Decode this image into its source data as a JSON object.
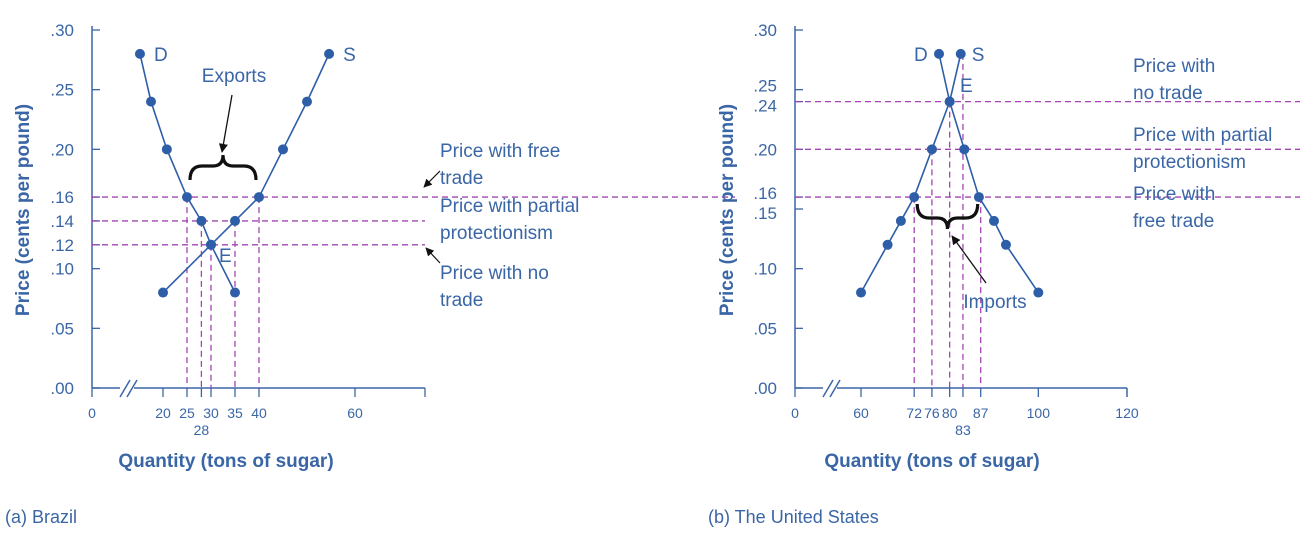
{
  "chart_data": [
    {
      "type": "line",
      "title": "(a) Brazil",
      "xlabel": "Quantity (tons of sugar)",
      "ylabel": "Price (cents per pound)",
      "xticks": [
        0,
        20,
        25,
        28,
        30,
        35,
        40,
        60
      ],
      "xtick_labels": [
        "0",
        "20",
        "25",
        "28",
        "30",
        "35",
        "40",
        "60"
      ],
      "yticks": [
        0.0,
        0.05,
        0.1,
        0.12,
        0.14,
        0.16,
        0.2,
        0.25,
        0.3
      ],
      "ytick_labels": [
        ".00",
        ".05",
        ".10",
        ".12",
        ".14",
        ".16",
        ".20",
        ".25",
        ".30"
      ],
      "ylim": [
        0,
        0.3
      ],
      "axis_break": true,
      "series": [
        {
          "name": "D",
          "x": [
            15.2,
            17.5,
            20.8,
            25,
            28,
            30,
            35
          ],
          "y": [
            0.28,
            0.24,
            0.2,
            0.16,
            0.14,
            0.12,
            0.08
          ]
        },
        {
          "name": "S",
          "x": [
            20,
            30,
            35,
            40,
            45,
            50,
            54.6
          ],
          "y": [
            0.08,
            0.12,
            0.14,
            0.16,
            0.2,
            0.24,
            0.28
          ]
        }
      ],
      "price_lines": [
        {
          "price": 0.16,
          "label1": "Price with free",
          "label2": "trade",
          "arrow": true
        },
        {
          "price": 0.14,
          "label1": "Price with partial",
          "label2": "protectionism",
          "arrow": false
        },
        {
          "price": 0.12,
          "label1": "Price with no",
          "label2": "trade",
          "arrow": true
        }
      ],
      "quantity_lines": [
        25,
        28,
        30,
        35,
        40
      ],
      "equilibrium_label": "E",
      "brace_label": "Exports",
      "brace_range": [
        25,
        40
      ]
    },
    {
      "type": "line",
      "title": "(b) The United States",
      "xlabel": "Quantity (tons of sugar)",
      "ylabel": "Price (cents per pound)",
      "xticks": [
        0,
        60,
        72,
        76,
        80,
        83,
        87,
        100,
        120
      ],
      "xtick_labels": [
        "0",
        "60",
        "72",
        "76",
        "80",
        "83",
        "87",
        "100",
        "120"
      ],
      "yticks": [
        0.0,
        0.05,
        0.1,
        0.15,
        0.16,
        0.2,
        0.24,
        0.25,
        0.3
      ],
      "ytick_labels": [
        ".00",
        ".05",
        ".10",
        ".15",
        ".16",
        ".20",
        ".24",
        ".25",
        ".30"
      ],
      "ylim": [
        0,
        0.3
      ],
      "axis_break": true,
      "series": [
        {
          "name": "D",
          "x": [
            77.6,
            80,
            83.3,
            86.6,
            90,
            92.7,
            100
          ],
          "y": [
            0.28,
            0.24,
            0.2,
            0.16,
            0.14,
            0.12,
            0.08
          ]
        },
        {
          "name": "S",
          "x": [
            60,
            66,
            69,
            72,
            76,
            80,
            82.5
          ],
          "y": [
            0.08,
            0.12,
            0.14,
            0.16,
            0.2,
            0.24,
            0.28
          ]
        }
      ],
      "price_lines": [
        {
          "price": 0.24,
          "label1": "Price with",
          "label2": "no trade"
        },
        {
          "price": 0.2,
          "label1": "Price with partial",
          "label2": "protectionism"
        },
        {
          "price": 0.16,
          "label1": "Price with",
          "label2": "free trade"
        }
      ],
      "quantity_lines": [
        72,
        76,
        80,
        83,
        87
      ],
      "equilibrium_label": "E",
      "brace_label": "Imports",
      "brace_range": [
        72,
        87
      ]
    }
  ],
  "colors": {
    "main": "#3a66a6",
    "dot": "#2f5ea8",
    "dash": "#a444b4",
    "arrow": "#111111"
  }
}
